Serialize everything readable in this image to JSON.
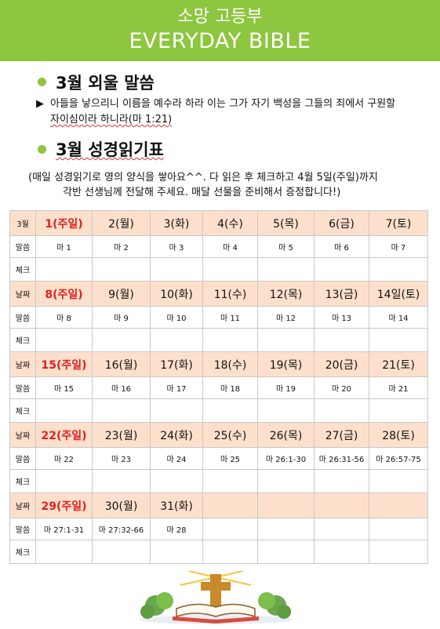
{
  "header": {
    "title": "소망 고등부",
    "subtitle": "EVERYDAY BIBLE"
  },
  "memory": {
    "heading": "3월 외울 말씀",
    "bullet_mark": "▶",
    "verse_line1": "아들을 낳으리니 이름을 예수라 하라 이는 그가 자기 백성을 그들의 죄에서 구원할",
    "verse_line2": "자이심이라 하니라(마 1:21)"
  },
  "plan": {
    "heading": "3월 성경읽기표",
    "note_line1": "(매일 성경읽기로 영의 양식을 쌓아요^^. 다 읽은 후 체크하고 4월 5일(주일)까지",
    "note_line2": "각반 선생님께 전달해 주세요. 매달 선물을 준비해서 증정합니다!)"
  },
  "calendar": {
    "weeks": [
      {
        "label_date": "3월",
        "label_verse": "말씀",
        "label_check": "체크",
        "days": [
          "1(주일)",
          "2(월)",
          "3(화)",
          "4(수)",
          "5(목)",
          "6(금)",
          "7(토)"
        ],
        "verses": [
          "마 1",
          "마 2",
          "마 3",
          "마 4",
          "마 5",
          "마 6",
          "마 7"
        ]
      },
      {
        "label_date": "날짜",
        "label_verse": "말씀",
        "label_check": "체크",
        "days": [
          "8(주일)",
          "9(월)",
          "10(화)",
          "11(수)",
          "12(목)",
          "13(금)",
          "14일(토)"
        ],
        "verses": [
          "마 8",
          "마 9",
          "마 10",
          "마 11",
          "마 12",
          "마 13",
          "마 14"
        ]
      },
      {
        "label_date": "날짜",
        "label_verse": "말씀",
        "label_check": "체크",
        "days": [
          "15(주일)",
          "16(월)",
          "17(화)",
          "18(수)",
          "19(목)",
          "20(금)",
          "21(토)"
        ],
        "verses": [
          "마 15",
          "마 16",
          "마 17",
          "마 18",
          "마 19",
          "마 20",
          "마 21"
        ]
      },
      {
        "label_date": "날짜",
        "label_verse": "말씀",
        "label_check": "체크",
        "days": [
          "22(주일)",
          "23(월)",
          "24(화)",
          "25(수)",
          "26(목)",
          "27(금)",
          "28(토)"
        ],
        "verses": [
          "마 22",
          "마 23",
          "마 24",
          "마 25",
          "마 26:1-30",
          "마 26:31-56",
          "마 26:57-75"
        ]
      },
      {
        "label_date": "날짜",
        "label_verse": "말씀",
        "label_check": "체크",
        "days": [
          "29(주일)",
          "30(월)",
          "31(화)",
          "",
          "",
          "",
          ""
        ],
        "verses": [
          "마 27:1-31",
          "마 27:32-66",
          "마 28",
          "",
          "",
          "",
          ""
        ]
      }
    ]
  },
  "colors": {
    "green": "#8dc63f",
    "peach": "#fde0cc",
    "sunday_red": "#e02020"
  },
  "icons": {
    "illustration": "open-bible-with-cross-icon"
  }
}
